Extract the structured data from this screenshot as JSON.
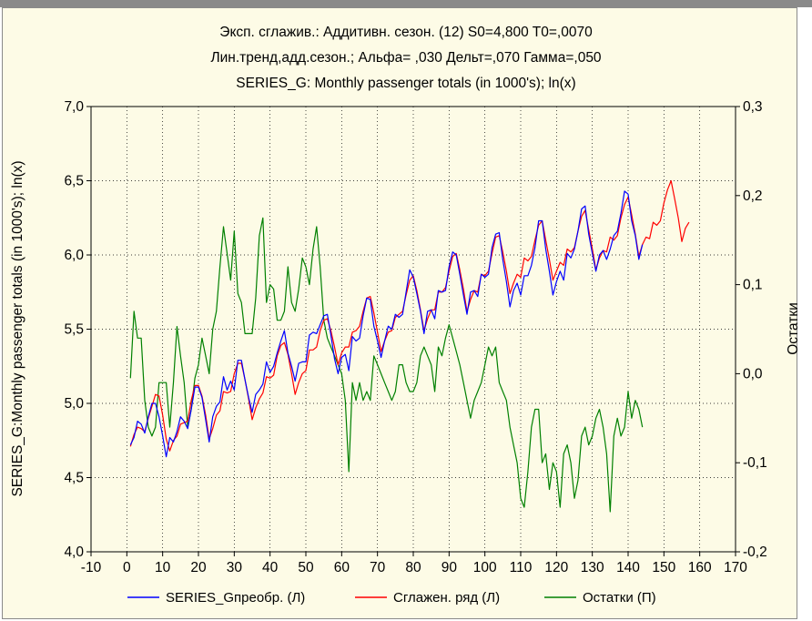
{
  "chart_data": {
    "type": "line",
    "title_lines": [
      "Эксп. сглажив.: Аддитивн. сезон. (12) S0=4,800 T0=,0070",
      "Лин.тренд,адд.сезон.; Альфа=  ,030 Дельт=,070 Гамма=,050",
      "SERIES_G: Monthly passenger totals (in 1000's); ln(x)"
    ],
    "xlabel": "",
    "ylabel": "SERIES_G:Monthly passenger totals (in 1000's); ln(x)",
    "y2label": "Остатки",
    "xlim": [
      -10,
      170
    ],
    "ylim": [
      4.0,
      7.0
    ],
    "y2lim": [
      -0.2,
      0.3
    ],
    "x_ticks": [
      "-10",
      "0",
      "10",
      "20",
      "30",
      "40",
      "50",
      "60",
      "70",
      "80",
      "90",
      "100",
      "110",
      "120",
      "130",
      "140",
      "150",
      "160",
      "170"
    ],
    "y_ticks": [
      "4,0",
      "4,5",
      "5,0",
      "5,5",
      "6,0",
      "6,5",
      "7,0"
    ],
    "y2_ticks": [
      "-0,2",
      "-0,1",
      "0,0",
      "0,1",
      "0,2",
      "0,3"
    ],
    "grid": true,
    "legend_position": "bottom",
    "series": [
      {
        "name": "SERIES_Gпреобр. (Л)",
        "color": "#0000ff",
        "axis": "left",
        "x_start": 1,
        "values": [
          4.72,
          4.77,
          4.88,
          4.86,
          4.8,
          4.91,
          5.0,
          5.0,
          4.91,
          4.78,
          4.64,
          4.77,
          4.74,
          4.81,
          4.91,
          4.88,
          4.83,
          4.96,
          5.11,
          5.11,
          5.04,
          4.89,
          4.74,
          4.91,
          4.98,
          5.01,
          5.18,
          5.09,
          5.15,
          5.09,
          5.29,
          5.29,
          5.16,
          5.04,
          4.94,
          5.06,
          5.09,
          5.13,
          5.28,
          5.21,
          5.25,
          5.34,
          5.42,
          5.49,
          5.34,
          5.25,
          5.15,
          5.27,
          5.28,
          5.28,
          5.46,
          5.48,
          5.47,
          5.53,
          5.59,
          5.6,
          5.46,
          5.3,
          5.2,
          5.31,
          5.33,
          5.22,
          5.45,
          5.42,
          5.44,
          5.59,
          5.71,
          5.7,
          5.52,
          5.42,
          5.31,
          5.42,
          5.52,
          5.5,
          5.6,
          5.58,
          5.6,
          5.75,
          5.9,
          5.85,
          5.74,
          5.62,
          5.47,
          5.62,
          5.63,
          5.57,
          5.76,
          5.75,
          5.76,
          5.92,
          6.02,
          6.0,
          5.87,
          5.73,
          5.6,
          5.75,
          5.76,
          5.72,
          5.87,
          5.85,
          5.87,
          6.05,
          6.14,
          6.15,
          5.97,
          5.82,
          5.65,
          5.76,
          5.81,
          5.73,
          5.86,
          5.86,
          5.93,
          6.05,
          6.23,
          6.23,
          6.04,
          5.89,
          5.73,
          5.82,
          5.89,
          5.83,
          6.01,
          5.98,
          6.04,
          6.16,
          6.31,
          6.33,
          6.14,
          6.01,
          5.89,
          6.0,
          6.03,
          5.97,
          6.04,
          6.13,
          6.16,
          6.28,
          6.43,
          6.41,
          6.23,
          6.13,
          5.97,
          6.07
        ]
      },
      {
        "name": "Сглажен. ряд (Л)",
        "color": "#ff0000",
        "axis": "left",
        "x_start": 1,
        "values": [
          4.71,
          4.79,
          4.84,
          4.83,
          4.81,
          4.9,
          4.98,
          5.06,
          5.05,
          4.92,
          4.76,
          4.68,
          4.75,
          4.78,
          4.86,
          4.87,
          4.88,
          5.02,
          5.12,
          5.12,
          5.05,
          4.92,
          4.76,
          4.83,
          4.92,
          4.95,
          5.08,
          5.07,
          5.08,
          5.2,
          5.27,
          5.27,
          5.16,
          5.03,
          4.89,
          4.97,
          5.03,
          5.07,
          5.18,
          5.17,
          5.19,
          5.32,
          5.39,
          5.41,
          5.33,
          5.2,
          5.06,
          5.14,
          5.2,
          5.22,
          5.36,
          5.36,
          5.38,
          5.49,
          5.56,
          5.57,
          5.49,
          5.38,
          5.26,
          5.34,
          5.38,
          5.38,
          5.48,
          5.49,
          5.52,
          5.62,
          5.71,
          5.72,
          5.61,
          5.48,
          5.35,
          5.42,
          5.48,
          5.49,
          5.58,
          5.6,
          5.62,
          5.73,
          5.83,
          5.86,
          5.76,
          5.63,
          5.49,
          5.57,
          5.63,
          5.63,
          5.75,
          5.75,
          5.78,
          5.89,
          5.99,
          6.01,
          5.9,
          5.77,
          5.62,
          5.7,
          5.76,
          5.75,
          5.87,
          5.86,
          5.89,
          6.01,
          6.12,
          6.13,
          6.02,
          5.89,
          5.74,
          5.81,
          5.87,
          5.85,
          5.98,
          5.96,
          5.99,
          6.1,
          6.2,
          6.23,
          6.1,
          5.97,
          5.83,
          5.89,
          5.95,
          5.93,
          6.04,
          6.02,
          6.05,
          6.16,
          6.26,
          6.3,
          6.17,
          6.04,
          5.9,
          5.98,
          6.03,
          6.02,
          6.12,
          6.1,
          6.13,
          6.25,
          6.34,
          6.39,
          6.27,
          6.14,
          5.99,
          6.07,
          6.12,
          6.11,
          6.22,
          6.2,
          6.23,
          6.35,
          6.44,
          6.5,
          6.38,
          6.25,
          6.09,
          6.18,
          6.22
        ]
      },
      {
        "name": "Остатки (П)",
        "color": "#008000",
        "axis": "right",
        "x_start": 1,
        "values": [
          -0.005,
          0.07,
          0.04,
          0.04,
          -0.03,
          -0.06,
          -0.07,
          -0.06,
          -0.01,
          -0.01,
          -0.01,
          -0.06,
          -0.01,
          0.053,
          0.02,
          -0.01,
          -0.06,
          -0.04,
          -0.005,
          0.01,
          0.04,
          0.02,
          0.0,
          0.05,
          0.07,
          0.12,
          0.165,
          0.135,
          0.105,
          0.16,
          0.09,
          0.08,
          0.045,
          0.045,
          0.045,
          0.085,
          0.155,
          0.175,
          0.08,
          0.1,
          0.095,
          0.06,
          0.06,
          0.07,
          0.12,
          0.08,
          0.07,
          0.095,
          0.13,
          0.12,
          0.1,
          0.14,
          0.165,
          0.12,
          0.06,
          0.04,
          0.03,
          0.02,
          0.01,
          0.0,
          -0.03,
          -0.11,
          -0.01,
          -0.03,
          -0.01,
          -0.03,
          -0.02,
          -0.03,
          0.02,
          0.01,
          0.0,
          -0.01,
          -0.02,
          -0.03,
          -0.02,
          0.01,
          0.01,
          -0.01,
          -0.02,
          -0.02,
          -0.01,
          0.02,
          0.03,
          0.02,
          0.01,
          -0.02,
          0.03,
          0.02,
          0.04,
          0.055,
          0.04,
          0.025,
          0.01,
          -0.01,
          -0.03,
          -0.05,
          -0.03,
          -0.02,
          -0.01,
          0.01,
          0.03,
          0.02,
          0.03,
          -0.01,
          -0.02,
          -0.03,
          -0.06,
          -0.08,
          -0.1,
          -0.14,
          -0.15,
          -0.11,
          -0.06,
          -0.04,
          -0.04,
          -0.1,
          -0.09,
          -0.13,
          -0.1,
          -0.11,
          -0.15,
          -0.09,
          -0.08,
          -0.1,
          -0.14,
          -0.12,
          -0.07,
          -0.06,
          -0.08,
          -0.07,
          -0.05,
          -0.04,
          -0.06,
          -0.09,
          -0.155,
          -0.07,
          -0.05,
          -0.07,
          -0.06,
          -0.02,
          -0.05,
          -0.03,
          -0.04,
          -0.06
        ]
      }
    ]
  }
}
